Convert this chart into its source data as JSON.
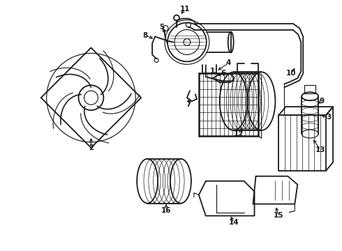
{
  "background_color": "#ffffff",
  "line_color": "#1a1a1a",
  "fig_width": 4.9,
  "fig_height": 3.6,
  "dpi": 100,
  "label_fontsize": 7.5,
  "lw_main": 1.3,
  "lw_thin": 0.85,
  "lw_thick": 1.8
}
